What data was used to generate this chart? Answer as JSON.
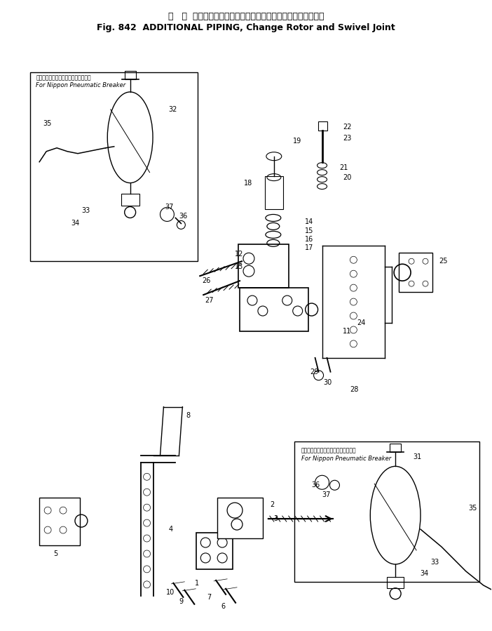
{
  "title_japanese": "増   設  パイピング、チェンジロータおよびスイベルジョイント",
  "title_english": "Fig. 842  ADDITIONAL PIPING, Change Rotor and Swivel Joint",
  "bg_color": "#ffffff",
  "line_color": "#000000",
  "text_color": "#000000",
  "fig_width": 7.02,
  "fig_height": 8.99,
  "dpi": 100,
  "upper_box_label_ja": "日本ニューマチック製ブレーカ識別用",
  "upper_box_label_en": "For Nippon Pneumatic Breaker",
  "lower_box_label_ja": "日本ニューマチック製ブレーカ識別用",
  "lower_box_label_en": "For Nippon Pneumatic Breaker"
}
